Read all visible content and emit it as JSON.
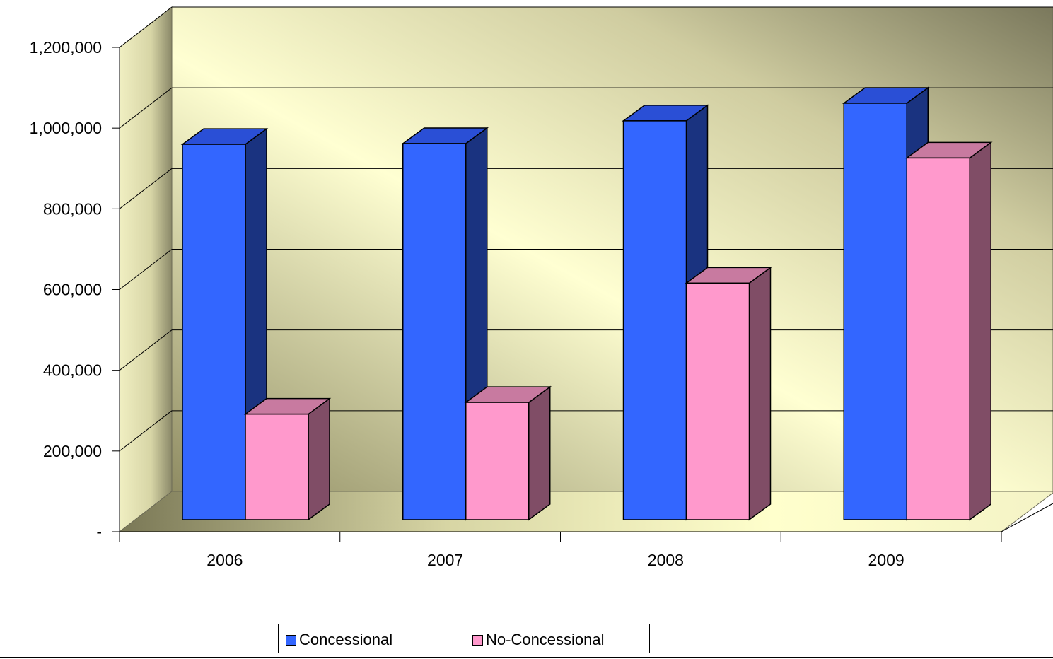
{
  "chart_data": {
    "type": "bar",
    "categories": [
      "2006",
      "2007",
      "2008",
      "2009"
    ],
    "series": [
      {
        "name": "Concessional",
        "values": [
          960000,
          962000,
          1020000,
          1065000
        ],
        "color": "#3366ff",
        "side_color": "#1a3380",
        "top_color": "#2a4fd6"
      },
      {
        "name": "No-Concessional",
        "values": [
          270000,
          300000,
          605000,
          925000
        ],
        "color": "#ff99cc",
        "side_color": "#804d66",
        "top_color": "#c87aa0"
      }
    ],
    "y_ticks": [
      {
        "value": 0,
        "label": "-"
      },
      {
        "value": 200000,
        "label": "200,000"
      },
      {
        "value": 400000,
        "label": "400,000"
      },
      {
        "value": 600000,
        "label": "600,000"
      },
      {
        "value": 800000,
        "label": "800,000"
      },
      {
        "value": 1000000,
        "label": "1,000,000"
      },
      {
        "value": 1200000,
        "label": "1,200,000"
      }
    ],
    "ylim": [
      0,
      1200000
    ],
    "title": "",
    "xlabel": "",
    "ylabel": "",
    "grid": true,
    "legend_position": "bottom",
    "projection": "3d"
  },
  "legend": {
    "items": [
      "Concessional",
      "No-Concessional"
    ]
  }
}
